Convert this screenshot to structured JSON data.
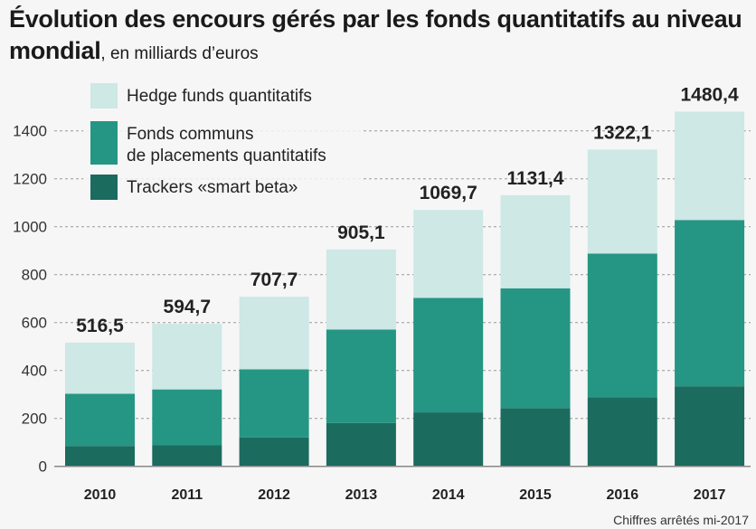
{
  "chart_data": {
    "type": "bar",
    "stacked": true,
    "title": "Évolution des encours gérés par les fonds quantitatifs au niveau mondial",
    "subtitle": ", en milliards d’euros",
    "xlabel": "",
    "ylabel": "",
    "ylim": [
      0,
      1400
    ],
    "yticks": [
      0,
      200,
      400,
      600,
      800,
      1000,
      1200,
      1400
    ],
    "grid": true,
    "legend_position": "top-left",
    "categories": [
      "2010",
      "2011",
      "2012",
      "2013",
      "2014",
      "2015",
      "2016",
      "2017"
    ],
    "series": [
      {
        "name": "Trackers «smart beta»",
        "color": "#1b6b5e",
        "values": [
          85,
          89,
          120,
          181,
          225,
          243,
          288,
          334
        ]
      },
      {
        "name": "Fonds communs de placements quantitatifs",
        "color": "#249683",
        "values": [
          218,
          232,
          285,
          390,
          478,
          500,
          600,
          694
        ]
      },
      {
        "name": "Hedge funds quantitatifs",
        "color": "#cde8e5",
        "values": [
          213.5,
          273.7,
          302.7,
          334.1,
          366.7,
          388.4,
          434.1,
          452.4
        ]
      }
    ],
    "totals": [
      516.5,
      594.7,
      707.7,
      905.1,
      1069.7,
      1131.4,
      1322.1,
      1480.4
    ],
    "total_labels": [
      "516,5",
      "594,7",
      "707,7",
      "905,1",
      "1069,7",
      "1131,4",
      "1322,1",
      "1480,4"
    ],
    "legend": [
      {
        "lines": [
          "Hedge funds quantitatifs"
        ],
        "color": "#cde8e5"
      },
      {
        "lines": [
          "Fonds communs",
          "de placements quantitatifs"
        ],
        "color": "#249683"
      },
      {
        "lines": [
          "Trackers «smart beta»"
        ],
        "color": "#1b6b5e"
      }
    ],
    "source": "Chiffres arrêtés mi-2017"
  }
}
